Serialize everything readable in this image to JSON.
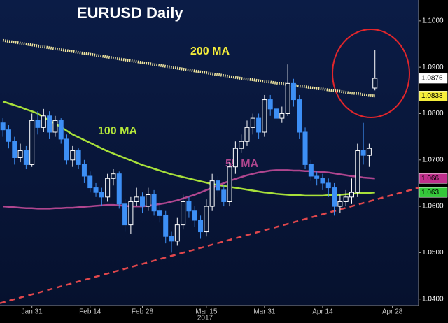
{
  "chart_data": {
    "type": "candlestick",
    "title": "EURUSD Daily",
    "x_year_label": "2017",
    "categories": [
      null,
      null,
      null,
      null,
      null,
      "Jan 31",
      null,
      null,
      null,
      null,
      null,
      null,
      null,
      null,
      null,
      "Feb 14",
      null,
      null,
      null,
      null,
      null,
      null,
      null,
      null,
      "Feb 28",
      null,
      null,
      null,
      null,
      null,
      null,
      null,
      null,
      null,
      null,
      "Mar 15",
      null,
      null,
      null,
      null,
      null,
      null,
      null,
      null,
      null,
      "Mar 31",
      null,
      null,
      null,
      null,
      null,
      null,
      null,
      null,
      null,
      "Apr 14",
      null,
      null,
      null,
      null,
      null,
      null,
      null,
      null,
      null,
      null,
      null,
      "Apr 28",
      null,
      null,
      null,
      null
    ],
    "open": [
      1.078,
      1.0765,
      1.074,
      1.0705,
      1.072,
      1.069,
      1.0785,
      1.077,
      1.0795,
      1.076,
      1.0785,
      1.0745,
      1.07,
      1.072,
      1.069,
      1.0665,
      1.064,
      1.063,
      1.062,
      1.066,
      1.067,
      1.0605,
      1.056,
      1.061,
      1.062,
      1.06,
      1.0625,
      1.059,
      1.058,
      1.0535,
      1.0525,
      1.056,
      1.061,
      1.059,
      1.057,
      1.0545,
      1.06,
      1.0655,
      1.0635,
      1.061,
      1.0685,
      1.0725,
      1.074,
      1.077,
      1.079,
      1.076,
      1.083,
      1.081,
      1.079,
      1.08,
      1.0865,
      1.083,
      1.076,
      1.069,
      1.0665,
      1.066,
      1.065,
      1.064,
      1.06,
      1.061,
      1.062,
      1.063,
      1.072,
      1.071,
      1.0855,
      null,
      null,
      null,
      null,
      null,
      null,
      null
    ],
    "high": [
      1.079,
      1.0775,
      1.075,
      1.0735,
      1.073,
      1.08,
      1.0805,
      1.081,
      1.0805,
      1.0795,
      1.079,
      1.0755,
      1.073,
      1.0725,
      1.07,
      1.0675,
      1.065,
      1.064,
      1.067,
      1.068,
      1.0675,
      1.0615,
      1.062,
      1.064,
      1.063,
      1.064,
      1.0635,
      1.061,
      1.059,
      1.0545,
      1.0575,
      1.0625,
      1.062,
      1.06,
      1.058,
      1.0615,
      1.067,
      1.0665,
      1.0645,
      1.0695,
      1.074,
      1.0755,
      1.0785,
      1.08,
      1.08,
      1.084,
      1.084,
      1.082,
      1.0815,
      1.0906,
      1.0875,
      1.084,
      1.077,
      1.07,
      1.0675,
      1.067,
      1.066,
      1.065,
      1.0625,
      1.0635,
      1.066,
      1.0735,
      1.078,
      1.0735,
      1.0937,
      null,
      null,
      null,
      null,
      null,
      null,
      null
    ],
    "low": [
      1.075,
      1.0725,
      1.069,
      1.0695,
      1.068,
      1.0685,
      1.0755,
      1.076,
      1.0745,
      1.075,
      1.0735,
      1.069,
      1.0685,
      1.068,
      1.065,
      1.063,
      1.062,
      1.06,
      1.061,
      1.0645,
      1.0595,
      1.0545,
      1.054,
      1.06,
      1.0585,
      1.059,
      1.058,
      1.0565,
      1.052,
      1.05,
      1.0515,
      1.055,
      1.0575,
      1.0555,
      1.053,
      1.0535,
      1.059,
      1.062,
      1.06,
      1.06,
      1.067,
      1.0715,
      1.073,
      1.0755,
      1.0745,
      1.075,
      1.0795,
      1.0775,
      1.078,
      1.0795,
      1.0815,
      1.0745,
      1.068,
      1.0655,
      1.0645,
      1.0635,
      1.062,
      1.058,
      1.0585,
      1.06,
      1.0605,
      1.062,
      1.069,
      1.0685,
      1.085,
      null,
      null,
      null,
      null,
      null,
      null,
      null
    ],
    "close": [
      1.0765,
      1.074,
      1.0705,
      1.072,
      1.069,
      1.0785,
      1.077,
      1.0795,
      1.076,
      1.0785,
      1.0745,
      1.07,
      1.072,
      1.069,
      1.0665,
      1.064,
      1.063,
      1.062,
      1.066,
      1.067,
      1.0605,
      1.056,
      1.061,
      1.062,
      1.06,
      1.0625,
      1.059,
      1.058,
      1.0535,
      1.0525,
      1.056,
      1.061,
      1.059,
      1.057,
      1.0545,
      1.06,
      1.0655,
      1.0635,
      1.061,
      1.0685,
      1.0725,
      1.074,
      1.077,
      1.079,
      1.076,
      1.083,
      1.081,
      1.079,
      1.08,
      1.0865,
      1.083,
      1.076,
      1.069,
      1.0665,
      1.066,
      1.065,
      1.064,
      1.06,
      1.061,
      1.062,
      1.063,
      1.072,
      1.071,
      1.0725,
      1.0876,
      null,
      null,
      null,
      null,
      null,
      null,
      null
    ],
    "up_color": "#ffffff",
    "down_color": "#3d8ff5",
    "series": [
      {
        "name": "200 MA",
        "color": "#f2e7a0",
        "style": "dotted",
        "values": [
          1.0958,
          1.0956,
          1.0954,
          1.0952,
          1.095,
          1.0948,
          1.0946,
          1.0944,
          1.0942,
          1.094,
          1.0938,
          1.0936,
          1.0934,
          1.0932,
          1.093,
          1.0928,
          1.0926,
          1.0924,
          1.0922,
          1.092,
          1.0918,
          1.0916,
          1.0914,
          1.0912,
          1.091,
          1.0908,
          1.0906,
          1.0904,
          1.0902,
          1.09,
          1.0898,
          1.0896,
          1.0894,
          1.0892,
          1.089,
          1.0888,
          1.0886,
          1.0884,
          1.0882,
          1.088,
          1.0878,
          1.0876,
          1.0874,
          1.0873,
          1.0871,
          1.0869,
          1.0868,
          1.0866,
          1.0864,
          1.0863,
          1.0861,
          1.0859,
          1.0858,
          1.0856,
          1.0854,
          1.0853,
          1.0851,
          1.0849,
          1.0848,
          1.0846,
          1.0844,
          1.0843,
          1.0841,
          1.0839,
          1.0838,
          null,
          null,
          null,
          null,
          null,
          null,
          null
        ]
      },
      {
        "name": "100 MA",
        "color": "#a8e03a",
        "style": "solid",
        "values": [
          1.0826,
          1.0822,
          1.0818,
          1.0814,
          1.0809,
          1.0805,
          1.08,
          1.0792,
          1.0785,
          1.0778,
          1.0771,
          1.0763,
          1.0755,
          1.0749,
          1.0743,
          1.0737,
          1.0731,
          1.0725,
          1.0719,
          1.0714,
          1.0709,
          1.0704,
          1.0699,
          1.0694,
          1.0689,
          1.0685,
          1.0681,
          1.0677,
          1.0673,
          1.0669,
          1.0666,
          1.0663,
          1.066,
          1.0657,
          1.0654,
          1.0651,
          1.0648,
          1.0646,
          1.0644,
          1.0642,
          1.064,
          1.0638,
          1.0636,
          1.0634,
          1.0632,
          1.063,
          1.0629,
          1.0627,
          1.0626,
          1.0625,
          1.0624,
          1.0624,
          1.0623,
          1.0623,
          1.0623,
          1.0623,
          1.0624,
          1.0624,
          1.0625,
          1.0626,
          1.0627,
          1.0628,
          1.0629,
          1.0629,
          1.063,
          null,
          null,
          null,
          null,
          null,
          null,
          null
        ]
      },
      {
        "name": "55 MA",
        "color": "#b0468f",
        "style": "solid",
        "values": [
          1.06,
          1.0599,
          1.0598,
          1.0597,
          1.0596,
          1.0596,
          1.0595,
          1.0595,
          1.0595,
          1.0596,
          1.0596,
          1.0597,
          1.0597,
          1.0598,
          1.0599,
          1.06,
          1.0601,
          1.0602,
          1.0603,
          1.0603,
          1.0602,
          1.0601,
          1.06,
          1.06,
          1.06,
          1.0601,
          1.0603,
          1.0605,
          1.0607,
          1.061,
          1.0613,
          1.0617,
          1.0621,
          1.0625,
          1.063,
          1.0635,
          1.064,
          1.0645,
          1.065,
          1.0655,
          1.0659,
          1.0663,
          1.0667,
          1.067,
          1.0673,
          1.0675,
          1.0677,
          1.0678,
          1.0678,
          1.0678,
          1.0677,
          1.0677,
          1.0676,
          1.0676,
          1.0675,
          1.0674,
          1.0673,
          1.0671,
          1.0669,
          1.0667,
          1.0665,
          1.0664,
          1.0662,
          1.0661,
          1.066,
          null,
          null,
          null,
          null,
          null,
          null,
          null
        ]
      }
    ],
    "trendline": {
      "start": 1.0391,
      "end": 1.064,
      "color": "#e0474c"
    },
    "price_markers": [
      {
        "value": 1.0876,
        "color": "#ffffff"
      },
      {
        "value": 1.0838,
        "color": "#f6ee3a"
      },
      {
        "value": 1.066,
        "color": "#c02f8c"
      },
      {
        "value": 1.063,
        "color": "#35c83a"
      }
    ],
    "ylim": [
      1.0386,
      1.1045
    ],
    "yticks": [
      {
        "value": 1.04,
        "label": "1.0400"
      },
      {
        "value": 1.05,
        "label": "1.0500"
      },
      {
        "value": 1.06,
        "label": "1.0600"
      },
      {
        "value": 1.07,
        "label": "1.0700"
      },
      {
        "value": 1.08,
        "label": "1.0800"
      },
      {
        "value": 1.09,
        "label": "1.0900"
      },
      {
        "value": 1.1,
        "label": "1.1000"
      }
    ],
    "grid": false
  }
}
